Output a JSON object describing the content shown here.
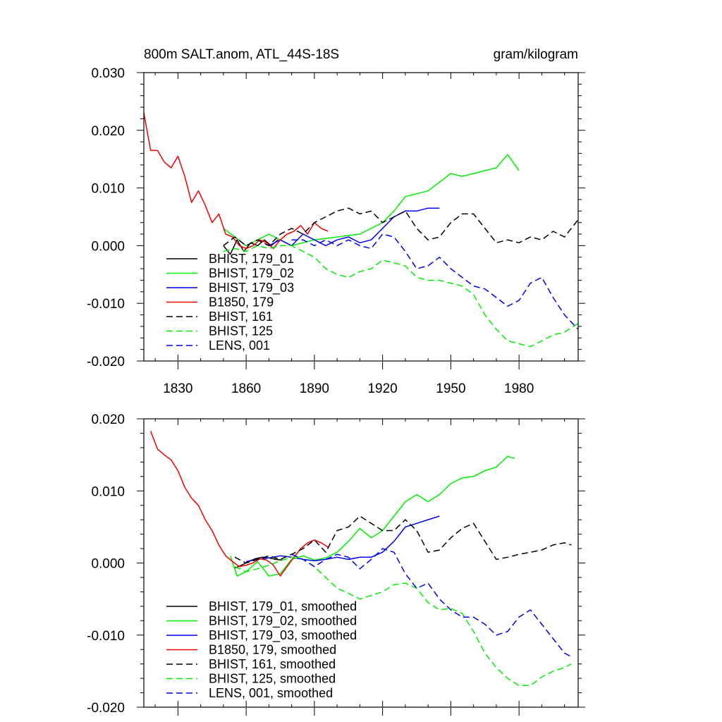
{
  "chart_data": [
    {
      "type": "line",
      "title": "800m SALT.anom, ATL_44S-18S",
      "units": "gram/kilogram",
      "xlabel": "",
      "ylabel": "",
      "xlim": [
        1815,
        2006
      ],
      "ylim": [
        -0.02,
        0.03
      ],
      "x_ticks": [
        1830,
        1860,
        1890,
        1920,
        1950,
        1980
      ],
      "x_tick_labels": [
        "1830",
        "1860",
        "1890",
        "1920",
        "1950",
        "1980"
      ],
      "y_ticks": [
        -0.02,
        -0.01,
        0.0,
        0.01,
        0.02,
        0.03
      ],
      "y_tick_labels": [
        "-0.020",
        "-0.010",
        "0.000",
        "0.010",
        "0.020",
        "0.030"
      ],
      "grid": false,
      "legend_position": "bottom-left",
      "series": [
        {
          "name": "BHIST, 179_01",
          "color": "#000000",
          "dash": "solid",
          "x": [
            1850,
            1853,
            1856,
            1859,
            1862,
            1865,
            1868,
            1871,
            1874
          ],
          "y": [
            0.0,
            -0.0015,
            0.001,
            -0.001,
            0.0005,
            0.0,
            0.001,
            0.0,
            0.001
          ]
        },
        {
          "name": "BHIST, 179_02",
          "color": "#00ee00",
          "dash": "solid",
          "x": [
            1850,
            1860,
            1870,
            1880,
            1890,
            1900,
            1910,
            1920,
            1925,
            1930,
            1935,
            1940,
            1945,
            1950,
            1955,
            1960,
            1965,
            1970,
            1975,
            1980
          ],
          "y": [
            0.003,
            0.0,
            0.002,
            0.0,
            0.001,
            0.0015,
            0.002,
            0.004,
            0.006,
            0.0085,
            0.009,
            0.0095,
            0.011,
            0.0125,
            0.012,
            0.0125,
            0.013,
            0.0135,
            0.0158,
            0.013
          ]
        },
        {
          "name": "BHIST, 179_03",
          "color": "#0000ee",
          "dash": "solid",
          "x": [
            1870,
            1875,
            1880,
            1885,
            1890,
            1895,
            1900,
            1905,
            1910,
            1915,
            1920,
            1925,
            1930,
            1935,
            1940,
            1945
          ],
          "y": [
            0.0,
            0.001,
            0.0,
            0.002,
            0.001,
            0.0,
            0.001,
            0.0015,
            0.0005,
            0.001,
            0.003,
            0.005,
            0.006,
            0.006,
            0.0065,
            0.0065
          ]
        },
        {
          "name": "B1850, 179",
          "color": "#ee0000",
          "dash": "solid",
          "x": [
            1815,
            1818,
            1821,
            1824,
            1827,
            1830,
            1833,
            1836,
            1839,
            1842,
            1845,
            1848,
            1851,
            1854,
            1857,
            1860,
            1863,
            1866,
            1869,
            1872,
            1875,
            1878,
            1881,
            1884,
            1887,
            1890,
            1893,
            1896
          ],
          "y": [
            0.023,
            0.0165,
            0.0165,
            0.0145,
            0.0135,
            0.0155,
            0.012,
            0.0075,
            0.0095,
            0.007,
            0.004,
            0.0055,
            0.002,
            0.0015,
            0.0,
            -0.0005,
            0.0,
            0.001,
            0.0005,
            -0.0005,
            0.001,
            0.002,
            0.0025,
            0.0035,
            0.002,
            0.004,
            0.003,
            0.0025
          ]
        },
        {
          "name": "BHIST, 161",
          "color": "#000000",
          "dash": "dashed",
          "x": [
            1850,
            1855,
            1860,
            1865,
            1870,
            1875,
            1880,
            1885,
            1890,
            1895,
            1900,
            1905,
            1910,
            1915,
            1920,
            1925,
            1930,
            1935,
            1940,
            1945,
            1950,
            1955,
            1960,
            1965,
            1970,
            1975,
            1980,
            1985,
            1990,
            1995,
            2000,
            2006
          ],
          "y": [
            0.0,
            0.0015,
            0.0,
            0.001,
            0.0,
            0.002,
            0.003,
            0.002,
            0.004,
            0.005,
            0.006,
            0.0065,
            0.0055,
            0.006,
            0.004,
            0.005,
            0.006,
            0.003,
            0.001,
            0.0015,
            0.004,
            0.0055,
            0.0055,
            0.003,
            0.0005,
            0.001,
            0.0005,
            0.0015,
            0.001,
            0.0025,
            0.0015,
            0.0045
          ]
        },
        {
          "name": "BHIST, 125",
          "color": "#00ee00",
          "dash": "dashed",
          "x": [
            1850,
            1855,
            1860,
            1865,
            1870,
            1875,
            1880,
            1885,
            1890,
            1895,
            1900,
            1905,
            1910,
            1915,
            1920,
            1925,
            1930,
            1935,
            1940,
            1945,
            1950,
            1955,
            1960,
            1965,
            1970,
            1975,
            1980,
            1985,
            1990,
            1995,
            2000,
            2006
          ],
          "y": [
            -0.001,
            -0.0005,
            -0.001,
            0.0,
            -0.0005,
            0.0,
            0.0,
            -0.001,
            -0.002,
            -0.004,
            -0.005,
            -0.0055,
            -0.0045,
            -0.004,
            -0.0025,
            -0.003,
            -0.0035,
            -0.0055,
            -0.006,
            -0.006,
            -0.0065,
            -0.007,
            -0.0085,
            -0.012,
            -0.0145,
            -0.0165,
            -0.017,
            -0.0175,
            -0.0165,
            -0.0155,
            -0.015,
            -0.0135
          ]
        },
        {
          "name": "LENS, 001",
          "color": "#0000ee",
          "dash": "dashed",
          "x": [
            1880,
            1885,
            1890,
            1895,
            1900,
            1905,
            1910,
            1915,
            1920,
            1925,
            1930,
            1935,
            1940,
            1945,
            1950,
            1955,
            1960,
            1965,
            1970,
            1975,
            1980,
            1985,
            1990,
            1995,
            2000,
            2006
          ],
          "y": [
            0.001,
            0.001,
            0.0,
            0.001,
            0.0,
            0.001,
            0.0,
            -0.0005,
            0.002,
            0.0015,
            -0.001,
            -0.004,
            -0.0035,
            -0.002,
            -0.004,
            -0.0055,
            -0.007,
            -0.0075,
            -0.009,
            -0.0105,
            -0.0095,
            -0.0065,
            -0.0055,
            -0.009,
            -0.012,
            -0.0145
          ]
        }
      ]
    },
    {
      "type": "line",
      "title": "",
      "xlabel": "",
      "ylabel": "",
      "xlim": [
        1815,
        2006
      ],
      "ylim": [
        -0.02,
        0.02
      ],
      "x_ticks": [
        1830,
        1860,
        1890,
        1920,
        1950,
        1980
      ],
      "y_ticks": [
        -0.02,
        -0.01,
        0.0,
        0.01,
        0.02
      ],
      "y_tick_labels": [
        "-0.020",
        "-0.010",
        "0.000",
        "0.010",
        "0.020"
      ],
      "grid": false,
      "legend_position": "bottom-left",
      "series": [
        {
          "name": "BHIST, 179_01, smoothed",
          "color": "#000000",
          "dash": "solid",
          "x": [
            1855,
            1858,
            1861,
            1864,
            1867,
            1870,
            1873,
            1876
          ],
          "y": [
            -0.0007,
            -0.0003,
            0.0002,
            0.0006,
            0.0008,
            0.0007,
            0.0005,
            0.0004
          ]
        },
        {
          "name": "BHIST, 179_02, smoothed",
          "color": "#00ee00",
          "dash": "solid",
          "x": [
            1853,
            1856,
            1860,
            1865,
            1870,
            1875,
            1880,
            1885,
            1890,
            1895,
            1900,
            1905,
            1910,
            1915,
            1920,
            1925,
            1930,
            1935,
            1940,
            1945,
            1950,
            1955,
            1960,
            1965,
            1970,
            1975,
            1978
          ],
          "y": [
            0.001,
            -0.0018,
            -0.0012,
            0.0002,
            -0.0018,
            -0.0015,
            0.0005,
            0.001,
            0.0004,
            0.0007,
            0.0015,
            0.003,
            0.0048,
            0.0035,
            0.0045,
            0.0065,
            0.0085,
            0.0095,
            0.0085,
            0.0095,
            0.011,
            0.0118,
            0.012,
            0.0128,
            0.0133,
            0.0148,
            0.0145
          ]
        },
        {
          "name": "BHIST, 179_03, smoothed",
          "color": "#0000ee",
          "dash": "solid",
          "x": [
            1860,
            1865,
            1870,
            1875,
            1880,
            1885,
            1890,
            1895,
            1900,
            1905,
            1910,
            1915,
            1920,
            1925,
            1930,
            1935,
            1940,
            1945
          ],
          "y": [
            0.0002,
            0.0005,
            0.0007,
            0.001,
            0.0008,
            0.0005,
            0.0003,
            0.0005,
            0.0008,
            0.0005,
            0.0008,
            0.0008,
            0.0015,
            0.003,
            0.005,
            0.0055,
            0.006,
            0.0065
          ]
        },
        {
          "name": "B1850, 179, smoothed",
          "color": "#ee0000",
          "dash": "solid",
          "x": [
            1818,
            1821,
            1824,
            1827,
            1830,
            1833,
            1836,
            1839,
            1842,
            1845,
            1848,
            1851,
            1854,
            1857,
            1860,
            1863,
            1866,
            1869,
            1872,
            1875,
            1878,
            1881,
            1884,
            1887,
            1890,
            1893,
            1896
          ],
          "y": [
            0.0183,
            0.0158,
            0.015,
            0.0143,
            0.0128,
            0.0105,
            0.009,
            0.008,
            0.006,
            0.0045,
            0.0025,
            0.001,
            0.0002,
            -0.0005,
            -0.0003,
            0.0,
            0.0006,
            0.0004,
            -0.0003,
            -0.0018,
            -0.0005,
            0.0008,
            0.002,
            0.0028,
            0.0032,
            0.0028,
            0.0022
          ]
        },
        {
          "name": "BHIST, 161, smoothed",
          "color": "#000000",
          "dash": "dashed",
          "x": [
            1855,
            1860,
            1865,
            1870,
            1875,
            1880,
            1885,
            1890,
            1895,
            1900,
            1905,
            1910,
            1915,
            1920,
            1925,
            1930,
            1935,
            1940,
            1945,
            1950,
            1955,
            1960,
            1965,
            1970,
            1975,
            1980,
            1985,
            1990,
            1995,
            2000,
            2003
          ],
          "y": [
            0.0008,
            0.0,
            0.0005,
            0.001,
            0.0005,
            0.0012,
            0.002,
            0.0032,
            0.0015,
            0.0045,
            0.005,
            0.0065,
            0.0055,
            0.0045,
            0.0045,
            0.006,
            0.0045,
            0.0015,
            0.0018,
            0.0035,
            0.0048,
            0.0055,
            0.003,
            0.0005,
            0.0008,
            0.0012,
            0.0015,
            0.0018,
            0.0025,
            0.0028,
            0.0025
          ]
        },
        {
          "name": "BHIST, 125, smoothed",
          "color": "#00ee00",
          "dash": "dashed",
          "x": [
            1855,
            1860,
            1865,
            1870,
            1875,
            1880,
            1885,
            1890,
            1895,
            1900,
            1905,
            1910,
            1915,
            1920,
            1925,
            1930,
            1935,
            1940,
            1945,
            1950,
            1955,
            1960,
            1965,
            1970,
            1975,
            1980,
            1985,
            1990,
            1995,
            2000,
            2003
          ],
          "y": [
            -0.0005,
            -0.0012,
            -0.0008,
            -0.0003,
            0.0003,
            0.0008,
            0.0005,
            -0.0005,
            -0.002,
            -0.0035,
            -0.0042,
            -0.005,
            -0.0045,
            -0.004,
            -0.003,
            -0.0028,
            -0.0035,
            -0.0055,
            -0.0065,
            -0.0063,
            -0.007,
            -0.0095,
            -0.0125,
            -0.0145,
            -0.016,
            -0.017,
            -0.017,
            -0.0158,
            -0.015,
            -0.0145,
            -0.014
          ]
        },
        {
          "name": "LENS, 001, smoothed",
          "color": "#0000ee",
          "dash": "dashed",
          "x": [
            1880,
            1885,
            1890,
            1895,
            1900,
            1905,
            1910,
            1915,
            1920,
            1925,
            1930,
            1935,
            1940,
            1945,
            1950,
            1955,
            1960,
            1965,
            1970,
            1975,
            1980,
            1985,
            1990,
            1995,
            2000,
            2003
          ],
          "y": [
            0.0012,
            0.0005,
            -0.0005,
            0.0005,
            0.0012,
            0.0008,
            -0.0008,
            0.0005,
            0.002,
            0.0015,
            -0.0015,
            -0.0035,
            -0.0028,
            -0.005,
            -0.0065,
            -0.0075,
            -0.0075,
            -0.0085,
            -0.01,
            -0.0095,
            -0.0075,
            -0.0065,
            -0.0085,
            -0.0105,
            -0.0125,
            -0.013
          ]
        }
      ]
    }
  ]
}
